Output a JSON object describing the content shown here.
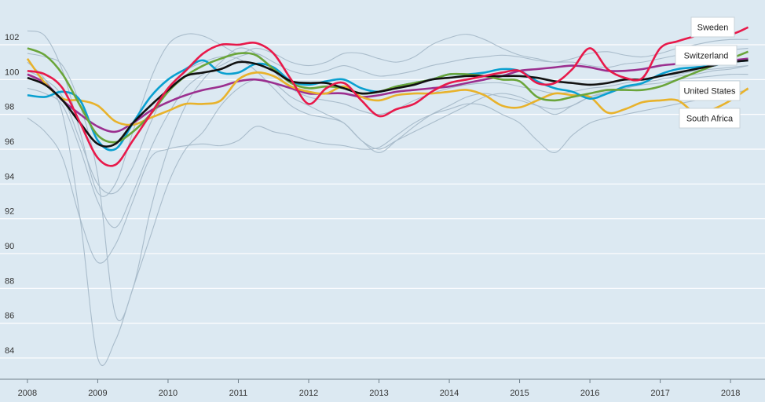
{
  "chart_data": {
    "type": "line",
    "x": [
      2008,
      2008.25,
      2008.5,
      2008.75,
      2009,
      2009.25,
      2009.5,
      2009.75,
      2010,
      2010.25,
      2010.5,
      2010.75,
      2011,
      2011.25,
      2011.5,
      2011.75,
      2012,
      2012.25,
      2012.5,
      2012.75,
      2013,
      2013.25,
      2013.5,
      2013.75,
      2014,
      2014.25,
      2014.5,
      2014.75,
      2015,
      2015.25,
      2015.5,
      2015.75,
      2016,
      2016.25,
      2016.5,
      2016.75,
      2017,
      2017.25,
      2017.5,
      2017.75,
      2018,
      2018.25
    ],
    "xlim": [
      2007.61,
      2018.49
    ],
    "xticks": [
      2008,
      2009,
      2010,
      2011,
      2012,
      2013,
      2014,
      2015,
      2016,
      2017,
      2018
    ],
    "ylim": [
      82.78,
      104.57
    ],
    "yticks": [
      84,
      86,
      88,
      90,
      92,
      94,
      96,
      98,
      100,
      102
    ],
    "grid": true,
    "series": [
      {
        "color": "#a9bccb",
        "values": [
          101,
          100,
          98,
          92,
          84,
          85,
          88,
          91,
          94,
          96,
          97,
          98.5,
          99.5,
          100,
          99.8,
          99,
          98.5,
          98,
          97.5,
          96.5,
          96,
          96.5,
          97,
          97.5,
          98,
          98.5,
          99,
          99.2,
          99,
          98.5,
          98,
          98.5,
          99,
          99.2,
          99.5,
          99.8,
          100,
          100.2,
          100.3,
          100.5,
          100.6,
          100.8
        ]
      },
      {
        "color": "#a9bccb",
        "values": [
          97.8,
          97,
          95.5,
          92,
          89.5,
          90.5,
          93,
          95.5,
          96,
          96.2,
          96.3,
          96.2,
          96.5,
          97.3,
          97,
          96.8,
          96.5,
          96.3,
          96.2,
          96,
          96.1,
          96.8,
          97.5,
          98,
          98.3,
          98.6,
          98.5,
          98,
          97.5,
          96.5,
          95.8,
          96.8,
          97.5,
          97.8,
          98,
          98.2,
          98.4,
          98.6,
          98.8,
          99,
          99.2,
          99.4
        ]
      },
      {
        "color": "#a9bccb",
        "values": [
          102.8,
          102.5,
          100.5,
          97,
          93.5,
          94,
          97,
          100,
          102,
          102.6,
          102.5,
          102,
          101.5,
          101.8,
          101.5,
          101,
          100.8,
          101,
          101.5,
          101.5,
          101.2,
          101,
          101.3,
          102,
          102.4,
          102.6,
          102.3,
          101.8,
          101.4,
          101.2,
          101,
          101.2,
          101.5,
          101.6,
          101.4,
          101.3,
          101.5,
          101.8,
          102,
          102.2,
          102.3,
          102.3
        ]
      },
      {
        "color": "#a9bccb",
        "values": [
          100.5,
          100,
          99,
          96.5,
          94,
          93.5,
          95,
          97.5,
          99.5,
          100.5,
          101,
          101.3,
          101.2,
          100.5,
          99.5,
          98.5,
          98,
          97.8,
          97.5,
          96.5,
          95.8,
          96.5,
          97.3,
          98,
          98.5,
          99,
          99.2,
          99,
          98.8,
          98.5,
          98.3,
          98.5,
          99,
          99.3,
          99.5,
          99.7,
          99.8,
          100,
          100.1,
          100.2,
          100.3,
          100.3
        ]
      },
      {
        "color": "#a9bccb",
        "values": [
          99.5,
          99.2,
          98.5,
          96,
          93,
          91.5,
          93.5,
          96,
          98,
          99.5,
          100.3,
          100.8,
          101.3,
          101.5,
          101,
          100.5,
          100.3,
          100.5,
          100.8,
          100.5,
          100.2,
          100.3,
          100.5,
          100.8,
          101,
          101.2,
          101.3,
          101.4,
          101.3,
          101.1,
          101,
          101,
          100.8,
          100.7,
          100.9,
          101,
          101.2,
          101.4,
          101.5,
          101.6,
          101.7,
          101.8
        ]
      },
      {
        "color": "#a9bccb",
        "values": [
          101.5,
          101.3,
          100.8,
          98.5,
          94.5,
          86.5,
          88,
          92.5,
          96,
          98.5,
          100,
          101,
          101.8,
          101.5,
          100.5,
          99.5,
          99,
          98.8,
          98.6,
          98.2,
          98,
          98.3,
          98.8,
          99.2,
          99.5,
          99.7,
          99.8,
          99.8,
          99.6,
          99.4,
          99.2,
          99.3,
          99.5,
          99.6,
          99.8,
          100,
          100.2,
          100.3,
          100.5,
          100.6,
          100.7,
          100.8
        ]
      },
      {
        "color": "#9b2f8f",
        "values": [
          100.3,
          99.8,
          98.8,
          98,
          97.3,
          97,
          97.5,
          98.2,
          98.7,
          99.1,
          99.4,
          99.6,
          99.9,
          100,
          99.8,
          99.5,
          99.2,
          99.2,
          99.2,
          99,
          99.1,
          99.3,
          99.4,
          99.5,
          99.6,
          99.8,
          100,
          100.2,
          100.5,
          100.6,
          100.7,
          100.8,
          100.7,
          100.5,
          100.5,
          100.6,
          100.8,
          100.9,
          101,
          101.1,
          101.1,
          101.2
        ]
      },
      {
        "name": "South Africa",
        "color": "#e8b22b",
        "values": [
          101.2,
          99.8,
          98.9,
          98.8,
          98.5,
          97.6,
          97.4,
          97.8,
          98.2,
          98.6,
          98.6,
          98.8,
          100,
          100.4,
          100.2,
          99.6,
          99.3,
          99.2,
          99.6,
          99,
          98.8,
          99.1,
          99.2,
          99.2,
          99.3,
          99.4,
          99.1,
          98.5,
          98.4,
          98.8,
          99.2,
          99.1,
          99,
          98.1,
          98.3,
          98.7,
          98.8,
          98.8,
          98.1,
          98.3,
          98.8,
          99.5
        ]
      },
      {
        "name": "United States",
        "color": "#0aa0d0",
        "values": [
          99.1,
          99,
          99.3,
          98.8,
          96.5,
          96,
          97.5,
          99,
          100,
          100.6,
          101.1,
          100.4,
          100.4,
          100.9,
          100.7,
          99.9,
          99.7,
          99.9,
          100,
          99.5,
          99.3,
          99.6,
          99.8,
          100,
          100.3,
          100.3,
          100.4,
          100.6,
          100.5,
          99.9,
          99.5,
          99.3,
          98.9,
          99.2,
          99.6,
          99.8,
          100.3,
          100.6,
          100.7,
          100.8,
          101,
          101.1
        ]
      },
      {
        "name": "Switzerland",
        "color": "#6aa53a",
        "values": [
          101.8,
          101.4,
          100.3,
          98.5,
          96.8,
          96.4,
          97,
          98,
          99.3,
          100.2,
          100.8,
          101.2,
          101.5,
          101.4,
          100.6,
          99.8,
          99.5,
          99.6,
          99.5,
          99.2,
          99.3,
          99.6,
          99.8,
          100,
          100.3,
          100.3,
          100.2,
          100,
          99.9,
          99,
          98.8,
          99,
          99.2,
          99.4,
          99.4,
          99.4,
          99.6,
          100,
          100.4,
          100.8,
          101.2,
          101.6
        ]
      },
      {
        "color": "#111111",
        "values": [
          100.1,
          99.7,
          98.8,
          97.5,
          96.3,
          96.3,
          97.5,
          98.5,
          99.4,
          100.2,
          100.4,
          100.6,
          101,
          100.9,
          100.5,
          99.9,
          99.8,
          99.8,
          99.5,
          99.2,
          99.3,
          99.5,
          99.7,
          100,
          100.1,
          100.2,
          100.2,
          100.2,
          100.2,
          100.1,
          99.9,
          99.8,
          99.7,
          99.8,
          100,
          100,
          100.2,
          100.4,
          100.6,
          100.8,
          101,
          101.1
        ]
      },
      {
        "name": "Sweden",
        "color": "#e8194a",
        "values": [
          100.5,
          100.3,
          99.5,
          97.5,
          95.5,
          95.1,
          96.5,
          98,
          99.5,
          100.5,
          101.5,
          102,
          102,
          102.1,
          101.5,
          100,
          98.6,
          99.5,
          99.8,
          98.8,
          97.9,
          98.3,
          98.6,
          99.3,
          99.8,
          100,
          100.2,
          100.4,
          100.5,
          99.8,
          99.8,
          100.6,
          101.8,
          100.6,
          100.1,
          100.1,
          101.8,
          102.2,
          102.5,
          102.8,
          102.6,
          103
        ]
      }
    ]
  }
}
